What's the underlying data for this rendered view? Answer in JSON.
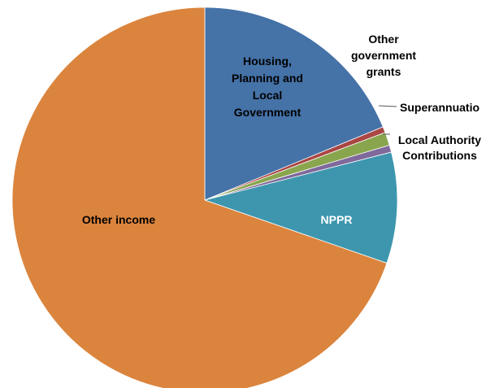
{
  "chart_data": {
    "type": "pie",
    "title": "",
    "start_angle_deg": 0,
    "direction": "clockwise",
    "slices": [
      {
        "label": [
          "Housing,",
          "Planning and",
          "Local",
          "Government"
        ],
        "value": 18.8,
        "color": "#4572A7"
      },
      {
        "label": [
          "Other",
          "government",
          "grants"
        ],
        "value": 0.5,
        "color": "#AA4643"
      },
      {
        "label": [
          "Superannuatio"
        ],
        "value": 1.1,
        "color": "#89A54E"
      },
      {
        "label": [
          "Local Authority",
          "Contributions"
        ],
        "value": 0.6,
        "color": "#80699B"
      },
      {
        "label": [
          "NPPR"
        ],
        "value": 9.3,
        "color": "#3D96AE"
      },
      {
        "label": [
          "Other income"
        ],
        "value": 69.7,
        "color": "#DB843D"
      }
    ]
  }
}
